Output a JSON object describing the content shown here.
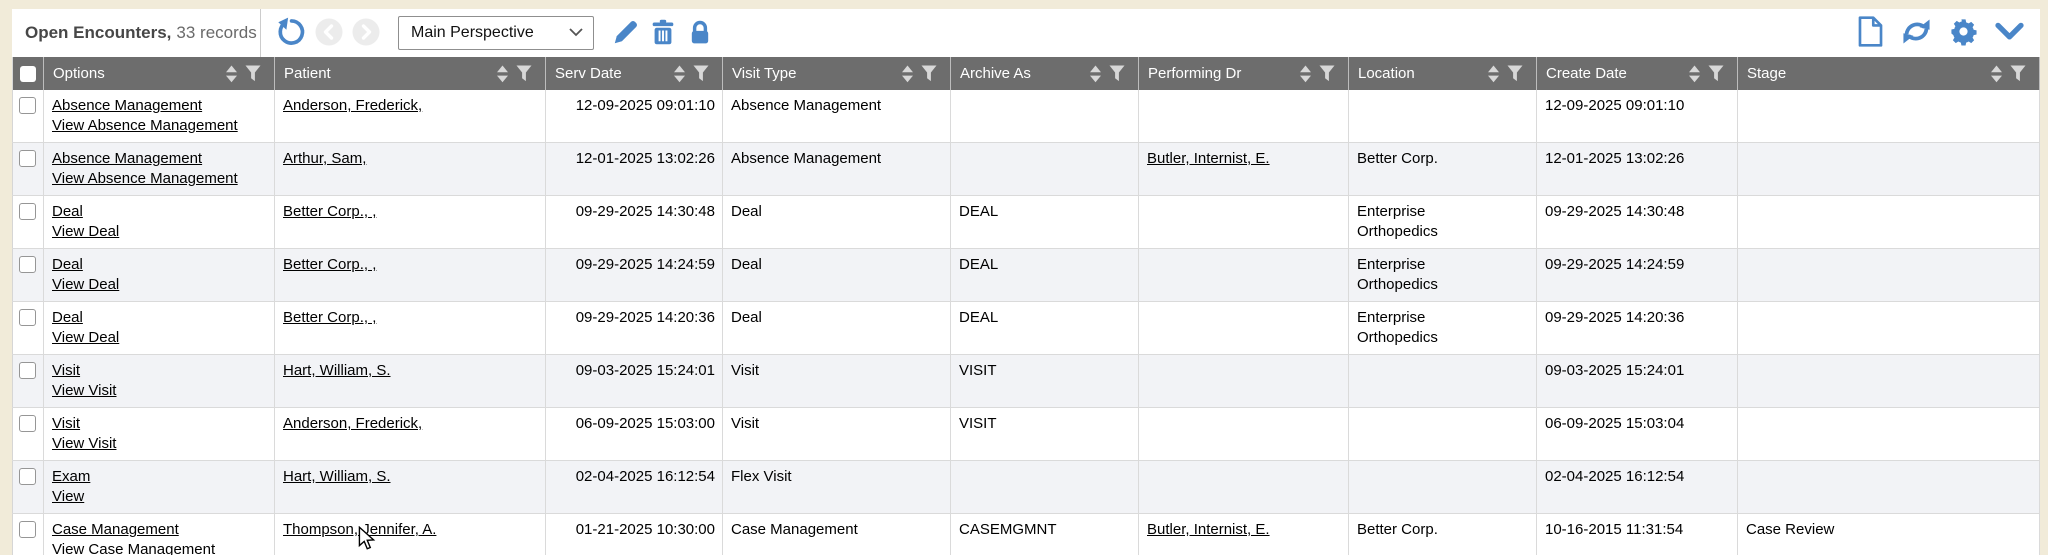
{
  "toolbar": {
    "title": "Open Encounters,",
    "records_label": "33 records",
    "perspective_selected": "Main Perspective",
    "accent_blue": "#4a86c8",
    "icon_names": [
      "undo-icon",
      "previous-icon",
      "next-icon",
      "dropdown-caret-icon",
      "edit-pencil-icon",
      "delete-trash-icon",
      "lock-icon",
      "new-record-icon",
      "refresh-icon",
      "settings-gear-icon",
      "collapse-chevron-icon"
    ]
  },
  "colors": {
    "frame_background": "#f1ebd9",
    "header_background": "#6d6d6d",
    "alt_row_background": "#f2f3f6",
    "accent_blue": "#4a86c8"
  },
  "table": {
    "header_icon_names": [
      "sort-icon",
      "filter-funnel-icon"
    ],
    "columns": [
      {
        "label": "Options"
      },
      {
        "label": "Patient"
      },
      {
        "label": "Serv Date"
      },
      {
        "label": "Visit Type"
      },
      {
        "label": "Archive As"
      },
      {
        "label": "Performing Dr"
      },
      {
        "label": "Location"
      },
      {
        "label": "Create Date"
      },
      {
        "label": "Stage"
      }
    ],
    "rows": [
      {
        "option_link": "Absence Management",
        "view_link": "View Absence Management",
        "patient": "Anderson, Frederick,",
        "serv_date": "12-09-2025 09:01:10",
        "visit_type": "Absence Management",
        "archive_as": "",
        "performing_dr": "",
        "location": "",
        "create_date": "12-09-2025 09:01:10",
        "stage": ""
      },
      {
        "option_link": "Absence Management",
        "view_link": "View Absence Management",
        "patient": "Arthur, Sam,",
        "serv_date": "12-01-2025 13:02:26",
        "visit_type": "Absence Management",
        "archive_as": "",
        "performing_dr": "Butler, Internist, E.",
        "location": "Better Corp.",
        "create_date": "12-01-2025 13:02:26",
        "stage": ""
      },
      {
        "option_link": "Deal",
        "view_link": "View Deal",
        "patient": "Better Corp., ,",
        "serv_date": "09-29-2025 14:30:48",
        "visit_type": "Deal",
        "archive_as": "DEAL",
        "performing_dr": "",
        "location": "Enterprise Orthopedics",
        "create_date": "09-29-2025 14:30:48",
        "stage": ""
      },
      {
        "option_link": "Deal",
        "view_link": "View Deal",
        "patient": "Better Corp., ,",
        "serv_date": "09-29-2025 14:24:59",
        "visit_type": "Deal",
        "archive_as": "DEAL",
        "performing_dr": "",
        "location": "Enterprise Orthopedics",
        "create_date": "09-29-2025 14:24:59",
        "stage": ""
      },
      {
        "option_link": "Deal",
        "view_link": "View Deal",
        "patient": "Better Corp., ,",
        "serv_date": "09-29-2025 14:20:36",
        "visit_type": "Deal",
        "archive_as": "DEAL",
        "performing_dr": "",
        "location": "Enterprise Orthopedics",
        "create_date": "09-29-2025 14:20:36",
        "stage": ""
      },
      {
        "option_link": "Visit",
        "view_link": "View Visit",
        "patient": "Hart, William, S.",
        "serv_date": "09-03-2025 15:24:01",
        "visit_type": "Visit",
        "archive_as": "VISIT",
        "performing_dr": "",
        "location": "",
        "create_date": "09-03-2025 15:24:01",
        "stage": ""
      },
      {
        "option_link": "Visit",
        "view_link": "View Visit",
        "patient": "Anderson, Frederick,",
        "serv_date": "06-09-2025 15:03:00",
        "visit_type": "Visit",
        "archive_as": "VISIT",
        "performing_dr": "",
        "location": "",
        "create_date": "06-09-2025 15:03:04",
        "stage": ""
      },
      {
        "option_link": "Exam",
        "view_link": "View",
        "patient": "Hart, William, S.",
        "serv_date": "02-04-2025 16:12:54",
        "visit_type": "Flex Visit",
        "archive_as": "",
        "performing_dr": "",
        "location": "",
        "create_date": "02-04-2025 16:12:54",
        "stage": ""
      },
      {
        "option_link": "Case Management",
        "view_link": "View Case Management",
        "patient": "Thompson, Jennifer, A.",
        "serv_date": "01-21-2025 10:30:00",
        "visit_type": "Case Management",
        "archive_as": "CASEMGMNT",
        "performing_dr": "Butler, Internist, E.",
        "location": "Better Corp.",
        "create_date": "10-16-2015 11:31:54",
        "stage": "Case Review"
      }
    ]
  }
}
